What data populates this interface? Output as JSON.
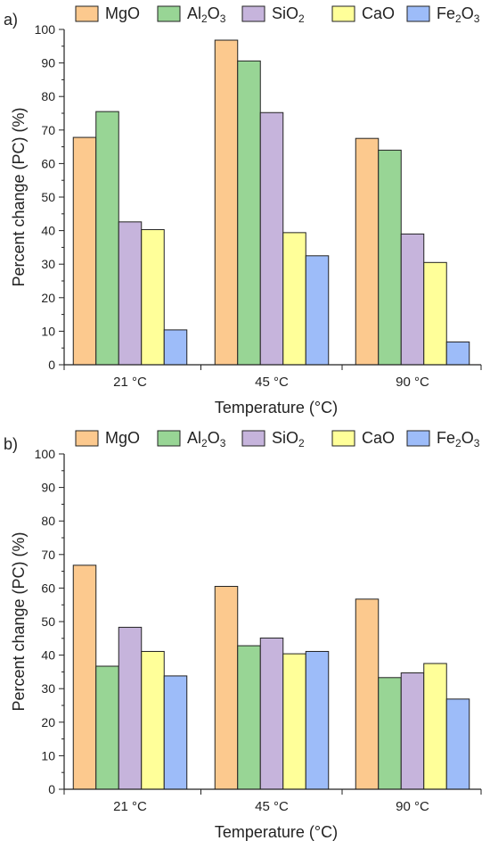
{
  "chart_data": [
    {
      "type": "bar",
      "panel_label": "a)",
      "categories": [
        "21 °C",
        "45 °C",
        "90 °C"
      ],
      "series": [
        {
          "name": "MgO",
          "name_parts": [
            {
              "t": "MgO"
            }
          ],
          "color": "#FCC98E",
          "values": [
            67.8,
            96.8,
            67.5
          ]
        },
        {
          "name": "Al2O3",
          "name_parts": [
            {
              "t": "Al"
            },
            {
              "t": "2",
              "sub": true
            },
            {
              "t": "O"
            },
            {
              "t": "3",
              "sub": true
            }
          ],
          "color": "#98D595",
          "values": [
            75.5,
            90.6,
            64.0
          ]
        },
        {
          "name": "SiO2",
          "name_parts": [
            {
              "t": "SiO"
            },
            {
              "t": "2",
              "sub": true
            }
          ],
          "color": "#C6B4DC",
          "values": [
            42.6,
            75.2,
            39.0
          ]
        },
        {
          "name": "CaO",
          "name_parts": [
            {
              "t": "CaO"
            }
          ],
          "color": "#FFFF99",
          "values": [
            40.3,
            39.4,
            30.5
          ]
        },
        {
          "name": "Fe2O3",
          "name_parts": [
            {
              "t": "Fe"
            },
            {
              "t": "2",
              "sub": true
            },
            {
              "t": "O"
            },
            {
              "t": "3",
              "sub": true
            }
          ],
          "color": "#9DBCF9",
          "values": [
            10.4,
            32.5,
            6.8
          ]
        }
      ],
      "xlabel": "Temperature (°C)",
      "ylabel": "Percent change (PC) (%)",
      "ylim": [
        0,
        100
      ],
      "yticks": [
        0,
        10,
        20,
        30,
        40,
        50,
        60,
        70,
        80,
        90,
        100
      ],
      "grid": false,
      "legend_position": "top"
    },
    {
      "type": "bar",
      "panel_label": "b)",
      "categories": [
        "21 °C",
        "45 °C",
        "90 °C"
      ],
      "series": [
        {
          "name": "MgO",
          "name_parts": [
            {
              "t": "MgO"
            }
          ],
          "color": "#FCC98E",
          "values": [
            66.8,
            60.5,
            56.7
          ]
        },
        {
          "name": "Al2O3",
          "name_parts": [
            {
              "t": "Al"
            },
            {
              "t": "2",
              "sub": true
            },
            {
              "t": "O"
            },
            {
              "t": "3",
              "sub": true
            }
          ],
          "color": "#98D595",
          "values": [
            36.7,
            42.8,
            33.3
          ]
        },
        {
          "name": "SiO2",
          "name_parts": [
            {
              "t": "SiO"
            },
            {
              "t": "2",
              "sub": true
            }
          ],
          "color": "#C6B4DC",
          "values": [
            48.3,
            45.1,
            34.7
          ]
        },
        {
          "name": "CaO",
          "name_parts": [
            {
              "t": "CaO"
            }
          ],
          "color": "#FFFF99",
          "values": [
            41.1,
            40.4,
            37.5
          ]
        },
        {
          "name": "Fe2O3",
          "name_parts": [
            {
              "t": "Fe"
            },
            {
              "t": "2",
              "sub": true
            },
            {
              "t": "O"
            },
            {
              "t": "3",
              "sub": true
            }
          ],
          "color": "#9DBCF9",
          "values": [
            33.8,
            41.1,
            26.9
          ]
        }
      ],
      "xlabel": "Temperature (°C)",
      "ylabel": "Percent change (PC) (%)",
      "ylim": [
        0,
        100
      ],
      "yticks": [
        0,
        10,
        20,
        30,
        40,
        50,
        60,
        70,
        80,
        90,
        100
      ],
      "grid": false,
      "legend_position": "top"
    }
  ]
}
